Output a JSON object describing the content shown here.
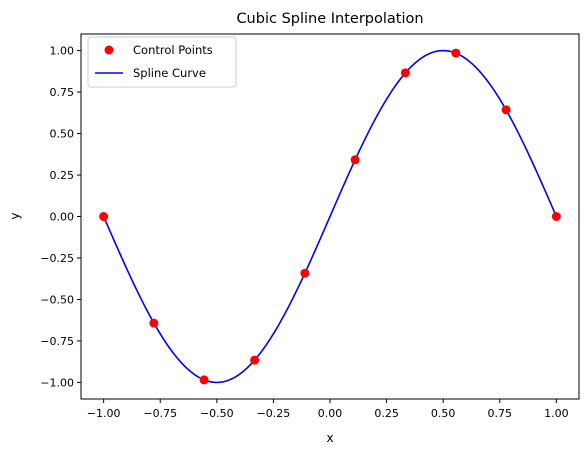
{
  "chart_data": {
    "type": "scatter+line",
    "title": "Cubic Spline Interpolation",
    "xlabel": "x",
    "ylabel": "y",
    "xlim": [
      -1.1,
      1.1
    ],
    "ylim": [
      -1.1,
      1.1
    ],
    "xticks": [
      -1.0,
      -0.75,
      -0.5,
      -0.25,
      0.0,
      0.25,
      0.5,
      0.75,
      1.0
    ],
    "xtick_labels": [
      "−1.00",
      "−0.75",
      "−0.50",
      "−0.25",
      "0.00",
      "0.25",
      "0.50",
      "0.75",
      "1.00"
    ],
    "yticks": [
      -1.0,
      -0.75,
      -0.5,
      -0.25,
      0.0,
      0.25,
      0.5,
      0.75,
      1.0
    ],
    "ytick_labels": [
      "−1.00",
      "−0.75",
      "−0.50",
      "−0.25",
      "0.00",
      "0.25",
      "0.50",
      "0.75",
      "1.00"
    ],
    "grid": false,
    "legend_placement": "upper-left",
    "series": [
      {
        "name": "Control Points",
        "kind": "scatter",
        "color": "#ff0000",
        "x": [
          -1.0,
          -0.778,
          -0.556,
          -0.333,
          -0.111,
          0.111,
          0.333,
          0.556,
          0.778,
          1.0
        ],
        "y": [
          0.0,
          -0.643,
          -0.985,
          -0.866,
          -0.342,
          0.342,
          0.866,
          0.985,
          0.643,
          0.0
        ]
      },
      {
        "name": "Spline Curve",
        "kind": "line",
        "color": "#0000ff",
        "function": "sin(pi*x)",
        "x_range": [
          -1.0,
          1.0
        ]
      }
    ]
  }
}
